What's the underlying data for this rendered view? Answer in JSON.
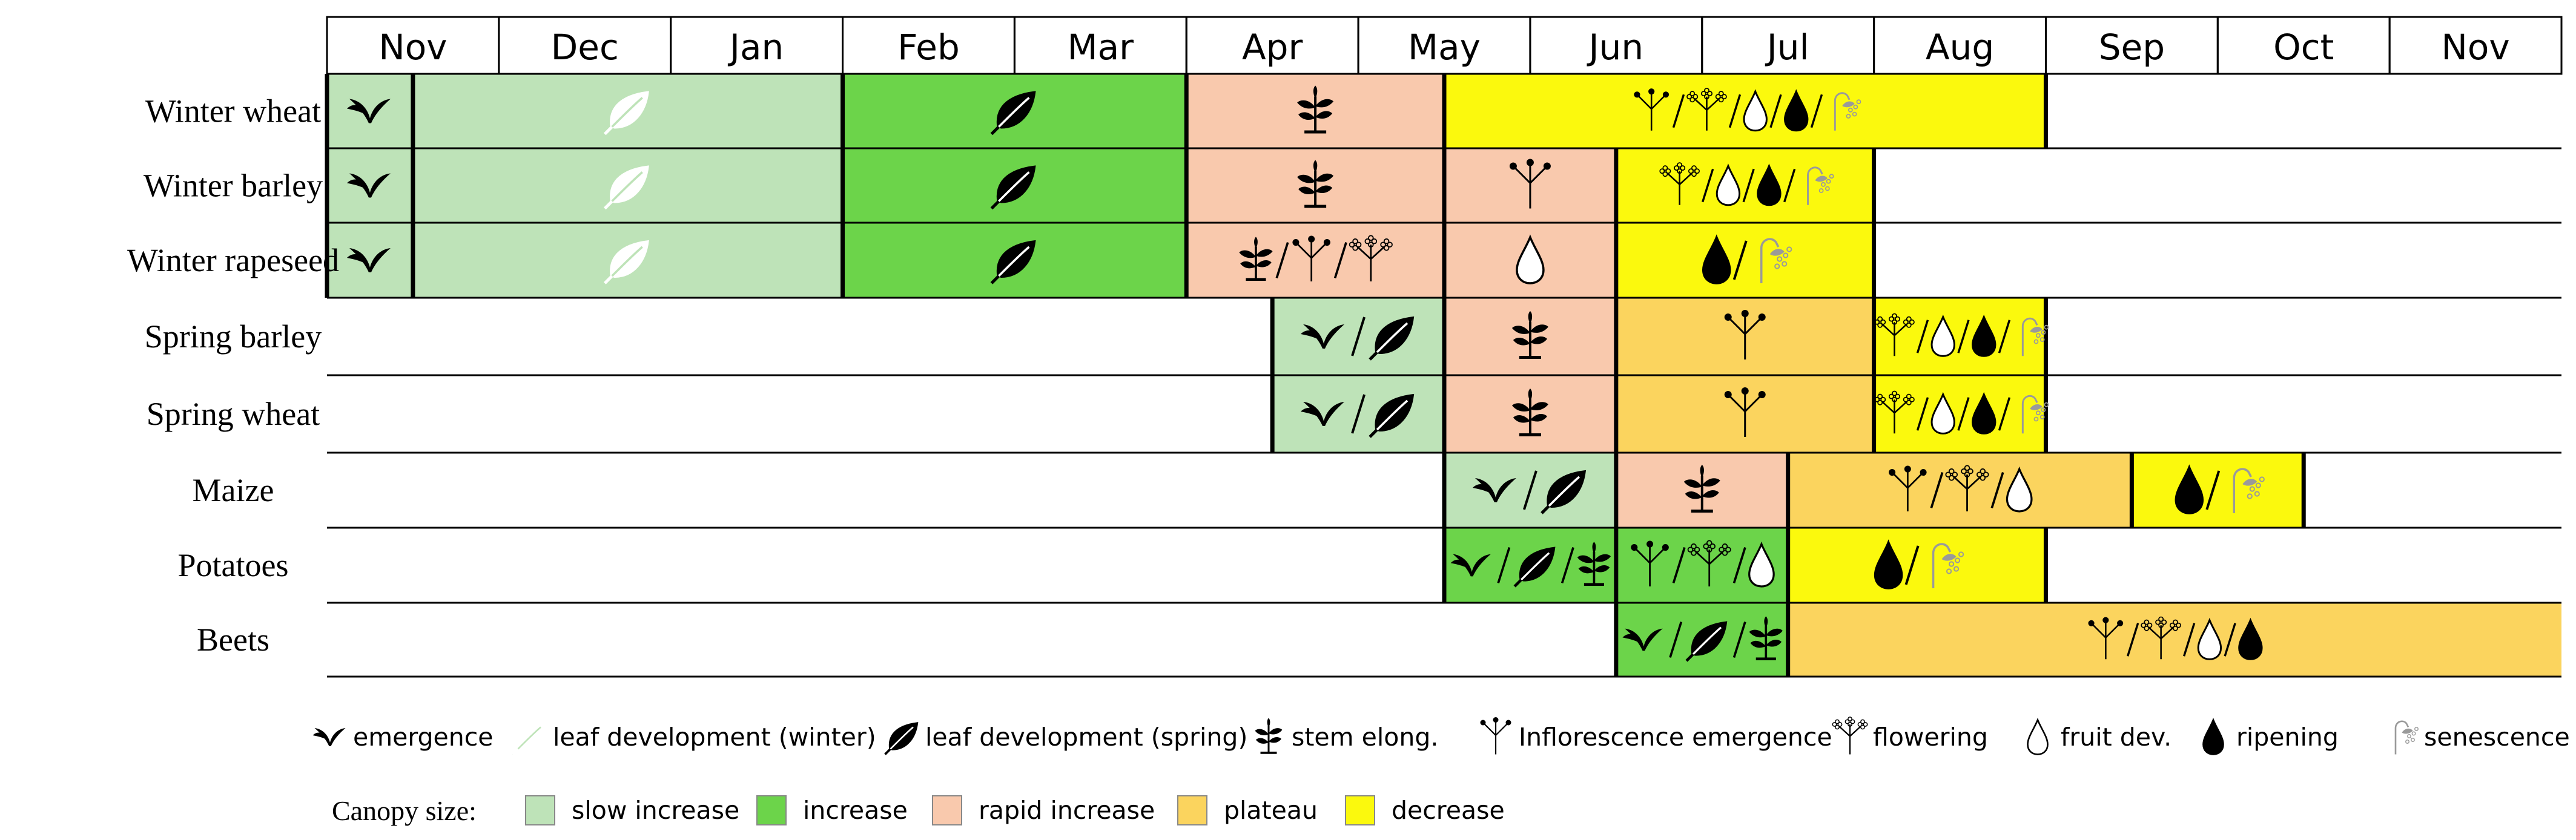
{
  "months": [
    "Nov",
    "Dec",
    "Jan",
    "Feb",
    "Mar",
    "Apr",
    "May",
    "Jun",
    "Jul",
    "Aug",
    "Sep",
    "Oct",
    "Nov"
  ],
  "colors": {
    "slow": "#bee3b8",
    "increase": "#6cd44a",
    "rapid": "#f9c9ad",
    "plateau": "#fbd45e",
    "decrease": "#fbf90d"
  },
  "crops": [
    {
      "name": "Winter wheat",
      "segments": [
        {
          "start": 0,
          "end": 0.5,
          "phase": "slow",
          "icons": [
            [
              "emergence",
              "black"
            ]
          ]
        },
        {
          "start": 0.5,
          "end": 3,
          "phase": "slow",
          "icons": [
            [
              "leaf",
              "white"
            ]
          ]
        },
        {
          "start": 3,
          "end": 5,
          "phase": "increase",
          "icons": [
            [
              "leaf",
              "black"
            ]
          ]
        },
        {
          "start": 5,
          "end": 6.5,
          "phase": "rapid",
          "icons": [
            [
              "stem",
              "black"
            ]
          ]
        },
        {
          "start": 6.5,
          "end": 10,
          "phase": "decrease",
          "icons": [
            [
              "infl",
              "black"
            ],
            [
              "slash"
            ],
            [
              "flower",
              "black"
            ],
            [
              "slash"
            ],
            [
              "drop",
              "white"
            ],
            [
              "slash"
            ],
            [
              "drop",
              "black"
            ],
            [
              "slash"
            ],
            [
              "sen",
              "gray"
            ]
          ]
        }
      ]
    },
    {
      "name": "Winter barley",
      "segments": [
        {
          "start": 0,
          "end": 0.5,
          "phase": "slow",
          "icons": [
            [
              "emergence",
              "black"
            ]
          ]
        },
        {
          "start": 0.5,
          "end": 3,
          "phase": "slow",
          "icons": [
            [
              "leaf",
              "white"
            ]
          ]
        },
        {
          "start": 3,
          "end": 5,
          "phase": "increase",
          "icons": [
            [
              "leaf",
              "black"
            ]
          ]
        },
        {
          "start": 5,
          "end": 6.5,
          "phase": "rapid",
          "icons": [
            [
              "stem",
              "black"
            ]
          ]
        },
        {
          "start": 6.5,
          "end": 7.5,
          "phase": "rapid",
          "icons": [
            [
              "infl",
              "black"
            ]
          ]
        },
        {
          "start": 7.5,
          "end": 9,
          "phase": "decrease",
          "icons": [
            [
              "flower",
              "black"
            ],
            [
              "slash"
            ],
            [
              "drop",
              "white"
            ],
            [
              "slash"
            ],
            [
              "drop",
              "black"
            ],
            [
              "slash"
            ],
            [
              "sen",
              "gray"
            ]
          ]
        }
      ]
    },
    {
      "name": "Winter rapeseed",
      "segments": [
        {
          "start": 0,
          "end": 0.5,
          "phase": "slow",
          "icons": [
            [
              "emergence",
              "black"
            ]
          ]
        },
        {
          "start": 0.5,
          "end": 3,
          "phase": "slow",
          "icons": [
            [
              "leaf",
              "white"
            ]
          ]
        },
        {
          "start": 3,
          "end": 5,
          "phase": "increase",
          "icons": [
            [
              "leaf",
              "black"
            ]
          ]
        },
        {
          "start": 5,
          "end": 6.5,
          "phase": "rapid",
          "icons": [
            [
              "stem",
              "black"
            ],
            [
              "slash"
            ],
            [
              "infl",
              "black"
            ],
            [
              "slash"
            ],
            [
              "flower",
              "black"
            ]
          ]
        },
        {
          "start": 6.5,
          "end": 7.5,
          "phase": "rapid",
          "icons": [
            [
              "drop",
              "white"
            ]
          ]
        },
        {
          "start": 7.5,
          "end": 9,
          "phase": "decrease",
          "icons": [
            [
              "drop",
              "black"
            ],
            [
              "slash"
            ],
            [
              "sen",
              "gray"
            ]
          ]
        }
      ]
    },
    {
      "name": "Spring barley",
      "segments": [
        {
          "start": 5.5,
          "end": 6.5,
          "phase": "slow",
          "icons": [
            [
              "emergence",
              "black"
            ],
            [
              "slash"
            ],
            [
              "leaf",
              "black"
            ]
          ]
        },
        {
          "start": 6.5,
          "end": 7.5,
          "phase": "rapid",
          "icons": [
            [
              "stem",
              "black"
            ]
          ]
        },
        {
          "start": 7.5,
          "end": 9,
          "phase": "plateau",
          "icons": [
            [
              "infl",
              "black"
            ]
          ]
        },
        {
          "start": 9,
          "end": 10,
          "phase": "decrease",
          "icons": [
            [
              "flower",
              "black"
            ],
            [
              "slash"
            ],
            [
              "drop",
              "white"
            ],
            [
              "slash"
            ],
            [
              "drop",
              "black"
            ],
            [
              "slash"
            ],
            [
              "sen",
              "gray"
            ]
          ]
        }
      ]
    },
    {
      "name": "Spring wheat",
      "segments": [
        {
          "start": 5.5,
          "end": 6.5,
          "phase": "slow",
          "icons": [
            [
              "emergence",
              "black"
            ],
            [
              "slash"
            ],
            [
              "leaf",
              "black"
            ]
          ]
        },
        {
          "start": 6.5,
          "end": 7.5,
          "phase": "rapid",
          "icons": [
            [
              "stem",
              "black"
            ]
          ]
        },
        {
          "start": 7.5,
          "end": 9,
          "phase": "plateau",
          "icons": [
            [
              "infl",
              "black"
            ]
          ]
        },
        {
          "start": 9,
          "end": 10,
          "phase": "decrease",
          "icons": [
            [
              "flower",
              "black"
            ],
            [
              "slash"
            ],
            [
              "drop",
              "white"
            ],
            [
              "slash"
            ],
            [
              "drop",
              "black"
            ],
            [
              "slash"
            ],
            [
              "sen",
              "gray"
            ]
          ]
        }
      ]
    },
    {
      "name": "Maize",
      "segments": [
        {
          "start": 6.5,
          "end": 7.5,
          "phase": "slow",
          "icons": [
            [
              "emergence",
              "black"
            ],
            [
              "slash"
            ],
            [
              "leaf",
              "black"
            ]
          ]
        },
        {
          "start": 7.5,
          "end": 8.5,
          "phase": "rapid",
          "icons": [
            [
              "stem",
              "black"
            ]
          ]
        },
        {
          "start": 8.5,
          "end": 10.5,
          "phase": "plateau",
          "icons": [
            [
              "infl",
              "black"
            ],
            [
              "slash"
            ],
            [
              "flower",
              "black"
            ],
            [
              "slash"
            ],
            [
              "drop",
              "white"
            ]
          ]
        },
        {
          "start": 10.5,
          "end": 11.5,
          "phase": "decrease",
          "icons": [
            [
              "drop",
              "black"
            ],
            [
              "slash"
            ],
            [
              "sen",
              "gray"
            ]
          ]
        }
      ]
    },
    {
      "name": "Potatoes",
      "segments": [
        {
          "start": 6.5,
          "end": 7.5,
          "phase": "increase",
          "icons": [
            [
              "emergence",
              "black"
            ],
            [
              "slash"
            ],
            [
              "leaf",
              "black"
            ],
            [
              "slash"
            ],
            [
              "stem",
              "black"
            ]
          ]
        },
        {
          "start": 7.5,
          "end": 8.5,
          "phase": "increase",
          "icons": [
            [
              "infl",
              "black"
            ],
            [
              "slash"
            ],
            [
              "flower",
              "black"
            ],
            [
              "slash"
            ],
            [
              "drop",
              "white"
            ]
          ]
        },
        {
          "start": 8.5,
          "end": 10,
          "phase": "decrease",
          "icons": [
            [
              "drop",
              "black"
            ],
            [
              "slash"
            ],
            [
              "sen",
              "gray"
            ]
          ]
        }
      ]
    },
    {
      "name": "Beets",
      "segments": [
        {
          "start": 7.5,
          "end": 8.5,
          "phase": "increase",
          "icons": [
            [
              "emergence",
              "black"
            ],
            [
              "slash"
            ],
            [
              "leaf",
              "black"
            ],
            [
              "slash"
            ],
            [
              "stem",
              "black"
            ]
          ]
        },
        {
          "start": 8.5,
          "end": 13,
          "phase": "plateau",
          "icons": [
            [
              "infl",
              "black"
            ],
            [
              "slash"
            ],
            [
              "flower",
              "black"
            ],
            [
              "slash"
            ],
            [
              "drop",
              "white"
            ],
            [
              "slash"
            ],
            [
              "drop",
              "black"
            ]
          ]
        }
      ]
    }
  ],
  "legend": {
    "stages": [
      {
        "icon": "emergence",
        "fill": "black",
        "label": "emergence"
      },
      {
        "icon": "leaf",
        "fill": "white",
        "label": "leaf development (winter)"
      },
      {
        "icon": "leaf",
        "fill": "black",
        "label": "leaf development (spring)"
      },
      {
        "icon": "stem",
        "fill": "black",
        "label": "stem elong."
      },
      {
        "icon": "infl",
        "fill": "black",
        "label": "Inflorescence emergence"
      },
      {
        "icon": "flower",
        "fill": "black",
        "label": "flowering"
      },
      {
        "icon": "drop",
        "fill": "white",
        "label": "fruit dev."
      },
      {
        "icon": "drop",
        "fill": "black",
        "label": "ripening"
      },
      {
        "icon": "sen",
        "fill": "gray",
        "label": "senescence"
      }
    ],
    "canopy_title": "Canopy size:",
    "canopy": [
      {
        "phase": "slow",
        "label": "slow increase"
      },
      {
        "phase": "increase",
        "label": "increase"
      },
      {
        "phase": "rapid",
        "label": "rapid increase"
      },
      {
        "phase": "plateau",
        "label": "plateau"
      },
      {
        "phase": "decrease",
        "label": "decrease"
      }
    ]
  }
}
